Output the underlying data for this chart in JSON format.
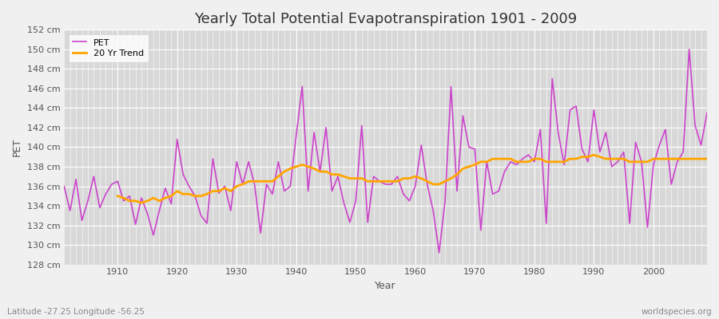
{
  "title": "Yearly Total Potential Evapotranspiration 1901 - 2009",
  "xlabel": "Year",
  "ylabel": "PET",
  "subtitle": "Latitude -27.25 Longitude -56.25",
  "watermark": "worldspecies.org",
  "pet_color": "#CC44CC",
  "trend_color": "#FFA500",
  "fig_bg_color": "#F0F0F0",
  "plot_bg_color": "#D8D8D8",
  "grid_color": "#FFFFFF",
  "ylim": [
    128,
    152
  ],
  "xlim": [
    1901,
    2009
  ],
  "ytick_step": 2,
  "legend_labels": [
    "PET",
    "20 Yr Trend"
  ],
  "years": [
    1901,
    1902,
    1903,
    1904,
    1905,
    1906,
    1907,
    1908,
    1909,
    1910,
    1911,
    1912,
    1913,
    1914,
    1915,
    1916,
    1917,
    1918,
    1919,
    1920,
    1921,
    1922,
    1923,
    1924,
    1925,
    1926,
    1927,
    1928,
    1929,
    1930,
    1931,
    1932,
    1933,
    1934,
    1935,
    1936,
    1937,
    1938,
    1939,
    1940,
    1941,
    1942,
    1943,
    1944,
    1945,
    1946,
    1947,
    1948,
    1949,
    1950,
    1951,
    1952,
    1953,
    1954,
    1955,
    1956,
    1957,
    1958,
    1959,
    1960,
    1961,
    1962,
    1963,
    1964,
    1965,
    1966,
    1967,
    1968,
    1969,
    1970,
    1971,
    1972,
    1973,
    1974,
    1975,
    1976,
    1977,
    1978,
    1979,
    1980,
    1981,
    1982,
    1983,
    1984,
    1985,
    1986,
    1987,
    1988,
    1989,
    1990,
    1991,
    1992,
    1993,
    1994,
    1995,
    1996,
    1997,
    1998,
    1999,
    2000,
    2001,
    2002,
    2003,
    2004,
    2005,
    2006,
    2007,
    2008,
    2009
  ],
  "pet_values": [
    136.0,
    133.5,
    136.7,
    132.5,
    134.5,
    137.0,
    133.8,
    135.2,
    136.2,
    136.5,
    134.5,
    135.0,
    132.1,
    134.8,
    133.2,
    131.0,
    133.5,
    135.8,
    134.2,
    140.8,
    137.2,
    136.0,
    135.0,
    133.0,
    132.2,
    138.8,
    135.3,
    136.0,
    133.5,
    138.5,
    136.2,
    138.5,
    136.2,
    131.2,
    136.2,
    135.2,
    138.5,
    135.5,
    136.0,
    141.2,
    146.2,
    135.5,
    141.5,
    137.5,
    142.0,
    135.5,
    137.0,
    134.3,
    132.3,
    134.5,
    142.2,
    132.3,
    137.0,
    136.5,
    136.2,
    136.2,
    137.0,
    135.2,
    134.5,
    136.0,
    140.2,
    136.2,
    133.5,
    129.2,
    134.5,
    146.2,
    135.5,
    143.2,
    140.0,
    139.8,
    131.5,
    138.5,
    135.2,
    135.5,
    137.5,
    138.5,
    138.2,
    138.8,
    139.2,
    138.5,
    141.8,
    132.2,
    147.0,
    141.5,
    138.2,
    143.8,
    144.2,
    139.8,
    138.5,
    143.8,
    139.5,
    141.5,
    138.0,
    138.5,
    139.5,
    132.2,
    140.5,
    138.5,
    131.8,
    138.2,
    140.2,
    141.8,
    136.2,
    138.5,
    139.5,
    150.0,
    142.2,
    140.2,
    143.5
  ],
  "trend_values": [
    null,
    null,
    null,
    null,
    null,
    null,
    null,
    null,
    null,
    135.0,
    134.8,
    134.5,
    134.5,
    134.3,
    134.5,
    134.8,
    134.5,
    134.8,
    135.0,
    135.5,
    135.2,
    135.2,
    135.0,
    135.0,
    135.2,
    135.5,
    135.5,
    135.8,
    135.5,
    136.0,
    136.2,
    136.5,
    136.5,
    136.5,
    136.5,
    136.5,
    137.0,
    137.5,
    137.8,
    138.0,
    138.2,
    138.0,
    137.8,
    137.5,
    137.5,
    137.2,
    137.2,
    137.0,
    136.8,
    136.8,
    136.8,
    136.5,
    136.5,
    136.5,
    136.5,
    136.5,
    136.5,
    136.8,
    136.8,
    137.0,
    136.8,
    136.5,
    136.2,
    136.2,
    136.5,
    136.8,
    137.2,
    137.8,
    138.0,
    138.2,
    138.5,
    138.5,
    138.8,
    138.8,
    138.8,
    138.8,
    138.5,
    138.5,
    138.5,
    138.8,
    138.8,
    138.5,
    138.5,
    138.5,
    138.5,
    138.8,
    138.8,
    139.0,
    139.0,
    139.2,
    139.0,
    138.8,
    138.8,
    138.8,
    138.8,
    138.5,
    138.5,
    138.5,
    138.5,
    138.8,
    138.8,
    138.8,
    138.8,
    138.8,
    138.8,
    138.8,
    138.8,
    138.8,
    138.8
  ]
}
